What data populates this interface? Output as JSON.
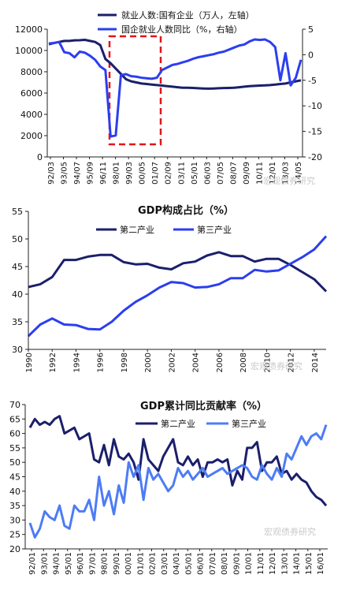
{
  "chart_data": [
    {
      "type": "line",
      "legend": [
        {
          "text": "就业人数:国有企业（万人，左轴）",
          "color": "#1b1f6b"
        },
        {
          "text": "国企就业人数同比（%，右轴）",
          "color": "#2b3ef0"
        }
      ],
      "x_ticks": [
        "92/03",
        "93/05",
        "94/07",
        "95/09",
        "96/11",
        "98/01",
        "99/03",
        "00/05",
        "01/07",
        "02/09",
        "03/11",
        "05/01",
        "06/03",
        "07/05",
        "08/07",
        "09/09",
        "10/11",
        "12/01",
        "13/03",
        "14/05"
      ],
      "ylim_left": [
        0,
        12000
      ],
      "yticks_left": [
        "0",
        "2000",
        "4000",
        "6000",
        "8000",
        "10000",
        "12000"
      ],
      "ylim_right": [
        -20,
        5
      ],
      "yticks_right": [
        "-20",
        "-15",
        "-10",
        "-5",
        "0",
        "5"
      ],
      "series": [
        {
          "name": "就业人数:国有企业（万人，左轴）",
          "color": "#1b1f6b",
          "axis": "left",
          "values": [
            10580,
            10700,
            10800,
            10900,
            10900,
            10950,
            10960,
            11000,
            10900,
            10800,
            10500,
            9200,
            8800,
            8300,
            7800,
            7300,
            7100,
            7000,
            6900,
            6850,
            6800,
            6750,
            6700,
            6650,
            6600,
            6550,
            6500,
            6500,
            6480,
            6450,
            6430,
            6420,
            6430,
            6450,
            6470,
            6480,
            6500,
            6550,
            6600,
            6650,
            6680,
            6700,
            6720,
            6750,
            6800,
            6850,
            6900,
            7000,
            7100,
            7200
          ]
        },
        {
          "name": "国企就业人数同比（%，右轴）",
          "color": "#2b3ef0",
          "axis": "right",
          "values": [
            2.2,
            2.3,
            2.5,
            0.5,
            0.3,
            -0.5,
            0.6,
            0.4,
            -0.2,
            -1.0,
            -2.3,
            -3.0,
            -16.0,
            -15.8,
            -4.0,
            -3.8,
            -4.2,
            -4.3,
            -4.5,
            -4.6,
            -4.7,
            -4.5,
            -3.0,
            -2.5,
            -2.0,
            -1.8,
            -1.5,
            -1.2,
            -0.8,
            -0.5,
            -0.3,
            -0.1,
            0.1,
            0.4,
            0.6,
            1.0,
            1.4,
            1.8,
            2.0,
            2.6,
            3.0,
            2.9,
            3.0,
            2.5,
            1.5,
            -5.0,
            0.3,
            -6.0,
            -4.5,
            -1.0
          ]
        }
      ],
      "annotation": "red dashed box"
    },
    {
      "type": "line",
      "title": "GDP构成占比（%）",
      "x": [
        "1990",
        "1991",
        "1992",
        "1993",
        "1994",
        "1995",
        "1996",
        "1997",
        "1998",
        "1999",
        "2000",
        "2001",
        "2002",
        "2003",
        "2004",
        "2005",
        "2006",
        "2007",
        "2008",
        "2009",
        "2010",
        "2011",
        "2012",
        "2013",
        "2014",
        "2015"
      ],
      "x_ticks": [
        "1990",
        "1992",
        "1994",
        "1996",
        "1998",
        "2000",
        "2002",
        "2004",
        "2006",
        "2008",
        "2010",
        "2012",
        "2014"
      ],
      "ylim": [
        30,
        55
      ],
      "yticks": [
        "30",
        "35",
        "40",
        "45",
        "50",
        "55"
      ],
      "series": [
        {
          "name": "第二产业",
          "color": "#1b1f6b",
          "values": [
            41.3,
            41.8,
            43.1,
            46.2,
            46.2,
            46.8,
            47.1,
            47.1,
            45.8,
            45.4,
            45.5,
            44.8,
            44.5,
            45.6,
            45.9,
            47.0,
            47.6,
            46.9,
            46.9,
            45.9,
            46.4,
            46.4,
            45.3,
            44.0,
            42.7,
            40.5
          ]
        },
        {
          "name": "第三产业",
          "color": "#2b3ef0",
          "values": [
            32.4,
            34.5,
            35.6,
            34.5,
            34.4,
            33.7,
            33.6,
            35.0,
            37.0,
            38.6,
            39.8,
            41.2,
            42.2,
            42.0,
            41.2,
            41.3,
            41.8,
            42.9,
            42.9,
            44.4,
            44.1,
            44.3,
            45.5,
            46.7,
            48.1,
            50.5
          ]
        }
      ]
    },
    {
      "type": "line",
      "title": "GDP累计同比贡献率（%）",
      "x_ticks": [
        "92/01",
        "93/01",
        "94/01",
        "95/01",
        "96/01",
        "97/01",
        "98/01",
        "99/01",
        "00/01",
        "01/01",
        "02/01",
        "03/01",
        "04/01",
        "05/01",
        "06/01",
        "07/01",
        "08/01",
        "09/01",
        "10/01",
        "11/01",
        "12/01",
        "13/01",
        "14/01",
        "15/01",
        "16/01"
      ],
      "ylim": [
        20,
        70
      ],
      "yticks": [
        "20",
        "25",
        "30",
        "35",
        "40",
        "45",
        "50",
        "55",
        "60",
        "65",
        "70"
      ],
      "series": [
        {
          "name": "第二产业",
          "color": "#1b1f6b",
          "values": [
            62,
            65,
            63,
            64,
            63,
            65,
            66,
            60,
            61,
            62,
            58,
            59,
            60,
            51,
            50,
            56,
            49,
            58,
            52,
            51,
            53,
            50,
            44,
            58,
            51,
            49,
            47,
            52,
            55,
            58,
            50,
            49,
            52,
            49,
            51,
            45,
            50,
            50,
            51,
            50,
            51,
            42,
            47,
            44,
            55,
            55,
            57,
            47,
            50,
            50,
            52,
            46,
            47,
            44,
            46,
            44,
            43,
            40,
            38,
            37,
            35
          ]
        },
        {
          "name": "第三产业",
          "color": "#4d7cf5",
          "values": [
            29,
            24,
            27,
            33,
            31,
            30,
            35,
            28,
            27,
            35,
            33,
            33,
            37,
            30,
            45,
            35,
            40,
            32,
            42,
            36,
            50,
            45,
            49,
            37,
            48,
            44,
            46,
            43,
            40,
            42,
            48,
            45,
            47,
            44,
            46,
            48,
            45,
            46,
            47,
            48,
            46,
            47,
            48,
            49,
            48,
            45,
            44,
            49,
            46,
            44,
            48,
            45,
            53,
            51,
            55,
            59,
            56,
            59,
            60,
            58,
            63
          ]
        }
      ]
    }
  ],
  "watermark": "宏观债券研究"
}
